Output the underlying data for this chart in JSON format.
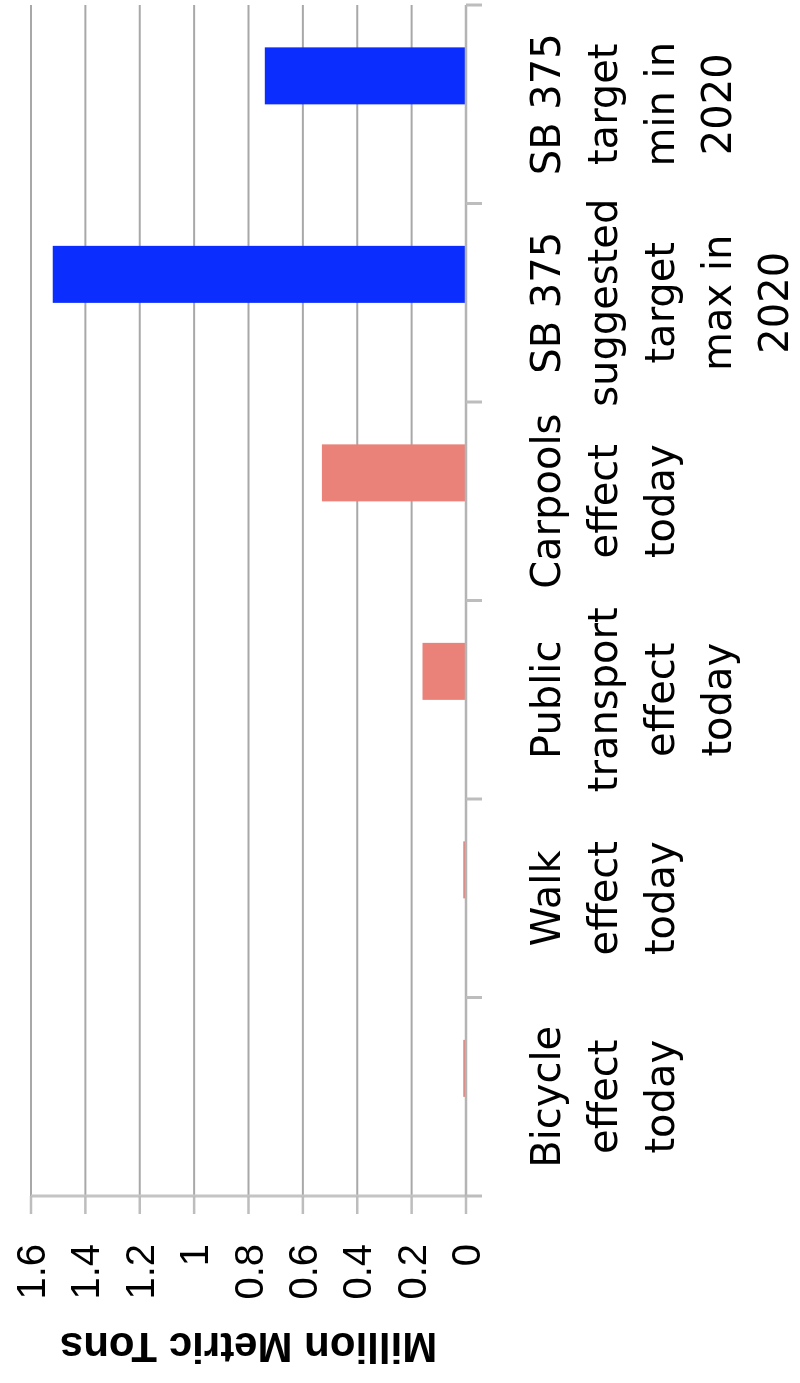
{
  "chart_data": {
    "type": "bar",
    "orientation": "horizontal",
    "xlabel": "Million Metric Tons",
    "categories": [
      "SB 375 target min in 2020",
      "SB 375 suggested target max in 2020",
      "Carpools effect today",
      "Public transport effect today",
      "Walk effect today",
      "Bicycle effect today"
    ],
    "values": [
      0.74,
      1.52,
      0.53,
      0.16,
      0.01,
      0.01
    ],
    "colors": [
      "#0b2eff",
      "#0b2eff",
      "#ea827a",
      "#ea827a",
      "#ea827a",
      "#ea827a"
    ],
    "xlim": [
      1.6,
      0
    ],
    "xticks": [
      0,
      0.2,
      0.4,
      0.6,
      0.8,
      1,
      1.2,
      1.4,
      1.6
    ],
    "grid": "x"
  }
}
